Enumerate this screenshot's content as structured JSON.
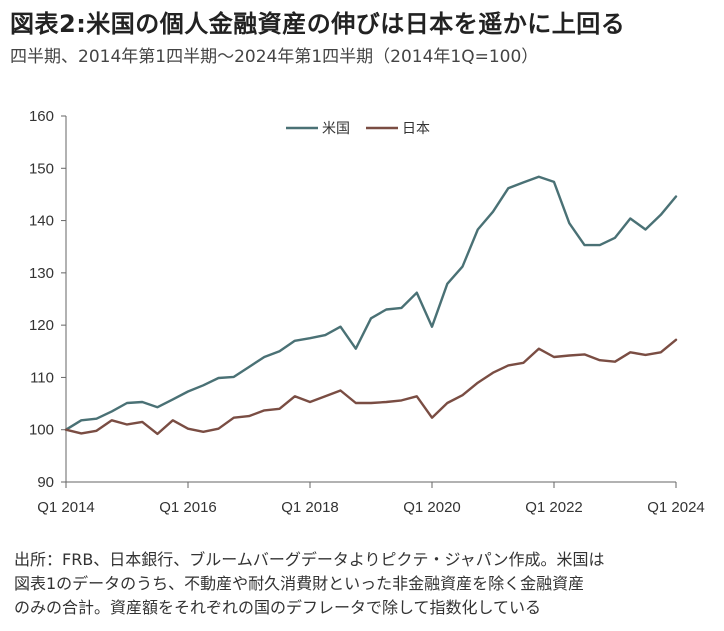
{
  "header": {
    "title": "図表2:米国の個人金融資産の伸びは日本を遥かに上回る",
    "subtitle": "四半期、2014年第1四半期～2024年第1四半期（2014年1Q=100）"
  },
  "chart_data": {
    "type": "line",
    "title": "図表2:米国の個人金融資産の伸びは日本を遥かに上回る",
    "subtitle": "四半期、2014年第1四半期～2024年第1四半期（2014年1Q=100）",
    "ylim": [
      90,
      160
    ],
    "yticks": [
      90,
      100,
      110,
      120,
      130,
      140,
      150,
      160
    ],
    "xtick_labels": [
      "Q1 2014",
      "Q1 2016",
      "Q1 2018",
      "Q1 2020",
      "Q1 2022",
      "Q1 2024"
    ],
    "xtick_index": [
      0,
      8,
      16,
      24,
      32,
      40
    ],
    "legend_position": "top-center",
    "grid": false,
    "x": [
      "2014Q1",
      "2014Q2",
      "2014Q3",
      "2014Q4",
      "2015Q1",
      "2015Q2",
      "2015Q3",
      "2015Q4",
      "2016Q1",
      "2016Q2",
      "2016Q3",
      "2016Q4",
      "2017Q1",
      "2017Q2",
      "2017Q3",
      "2017Q4",
      "2018Q1",
      "2018Q2",
      "2018Q3",
      "2018Q4",
      "2019Q1",
      "2019Q2",
      "2019Q3",
      "2019Q4",
      "2020Q1",
      "2020Q2",
      "2020Q3",
      "2020Q4",
      "2021Q1",
      "2021Q2",
      "2021Q3",
      "2021Q4",
      "2022Q1",
      "2022Q2",
      "2022Q3",
      "2022Q4",
      "2023Q1",
      "2023Q2",
      "2023Q3",
      "2023Q4",
      "2024Q1"
    ],
    "series": [
      {
        "name": "米国",
        "color": "#4a7175",
        "values": [
          100,
          101.8,
          102.1,
          103.5,
          105.1,
          105.3,
          104.3,
          105.8,
          107.3,
          108.5,
          109.9,
          110.1,
          112.0,
          113.9,
          115.0,
          117.0,
          117.5,
          118.1,
          119.7,
          115.5,
          121.3,
          123.0,
          123.3,
          126.2,
          119.7,
          127.9,
          131.2,
          138.3,
          141.7,
          146.2,
          147.3,
          148.4,
          147.4,
          139.5,
          135.3,
          135.3,
          136.7,
          140.4,
          138.3,
          141.1,
          144.6
        ]
      },
      {
        "name": "日本",
        "color": "#7a4d43",
        "values": [
          100,
          99.3,
          99.8,
          101.8,
          101.0,
          101.5,
          99.2,
          101.8,
          100.2,
          99.6,
          100.2,
          102.3,
          102.6,
          103.7,
          104.0,
          106.4,
          105.3,
          106.4,
          107.5,
          105.1,
          105.1,
          105.3,
          105.6,
          106.4,
          102.3,
          105.1,
          106.6,
          109.0,
          110.9,
          112.3,
          112.8,
          115.5,
          113.9,
          114.2,
          114.4,
          113.3,
          113.0,
          114.8,
          114.3,
          114.8,
          117.2
        ]
      }
    ]
  },
  "footnote": {
    "lines": [
      "出所：FRB、日本銀行、ブルームバーグデータよりピクテ・ジャパン作成。米国は",
      "図表1のデータのうち、不動産や耐久消費財といった非金融資産を除く金融資産",
      "のみの合計。資産額をそれぞれの国のデフレータで除して指数化している"
    ]
  }
}
